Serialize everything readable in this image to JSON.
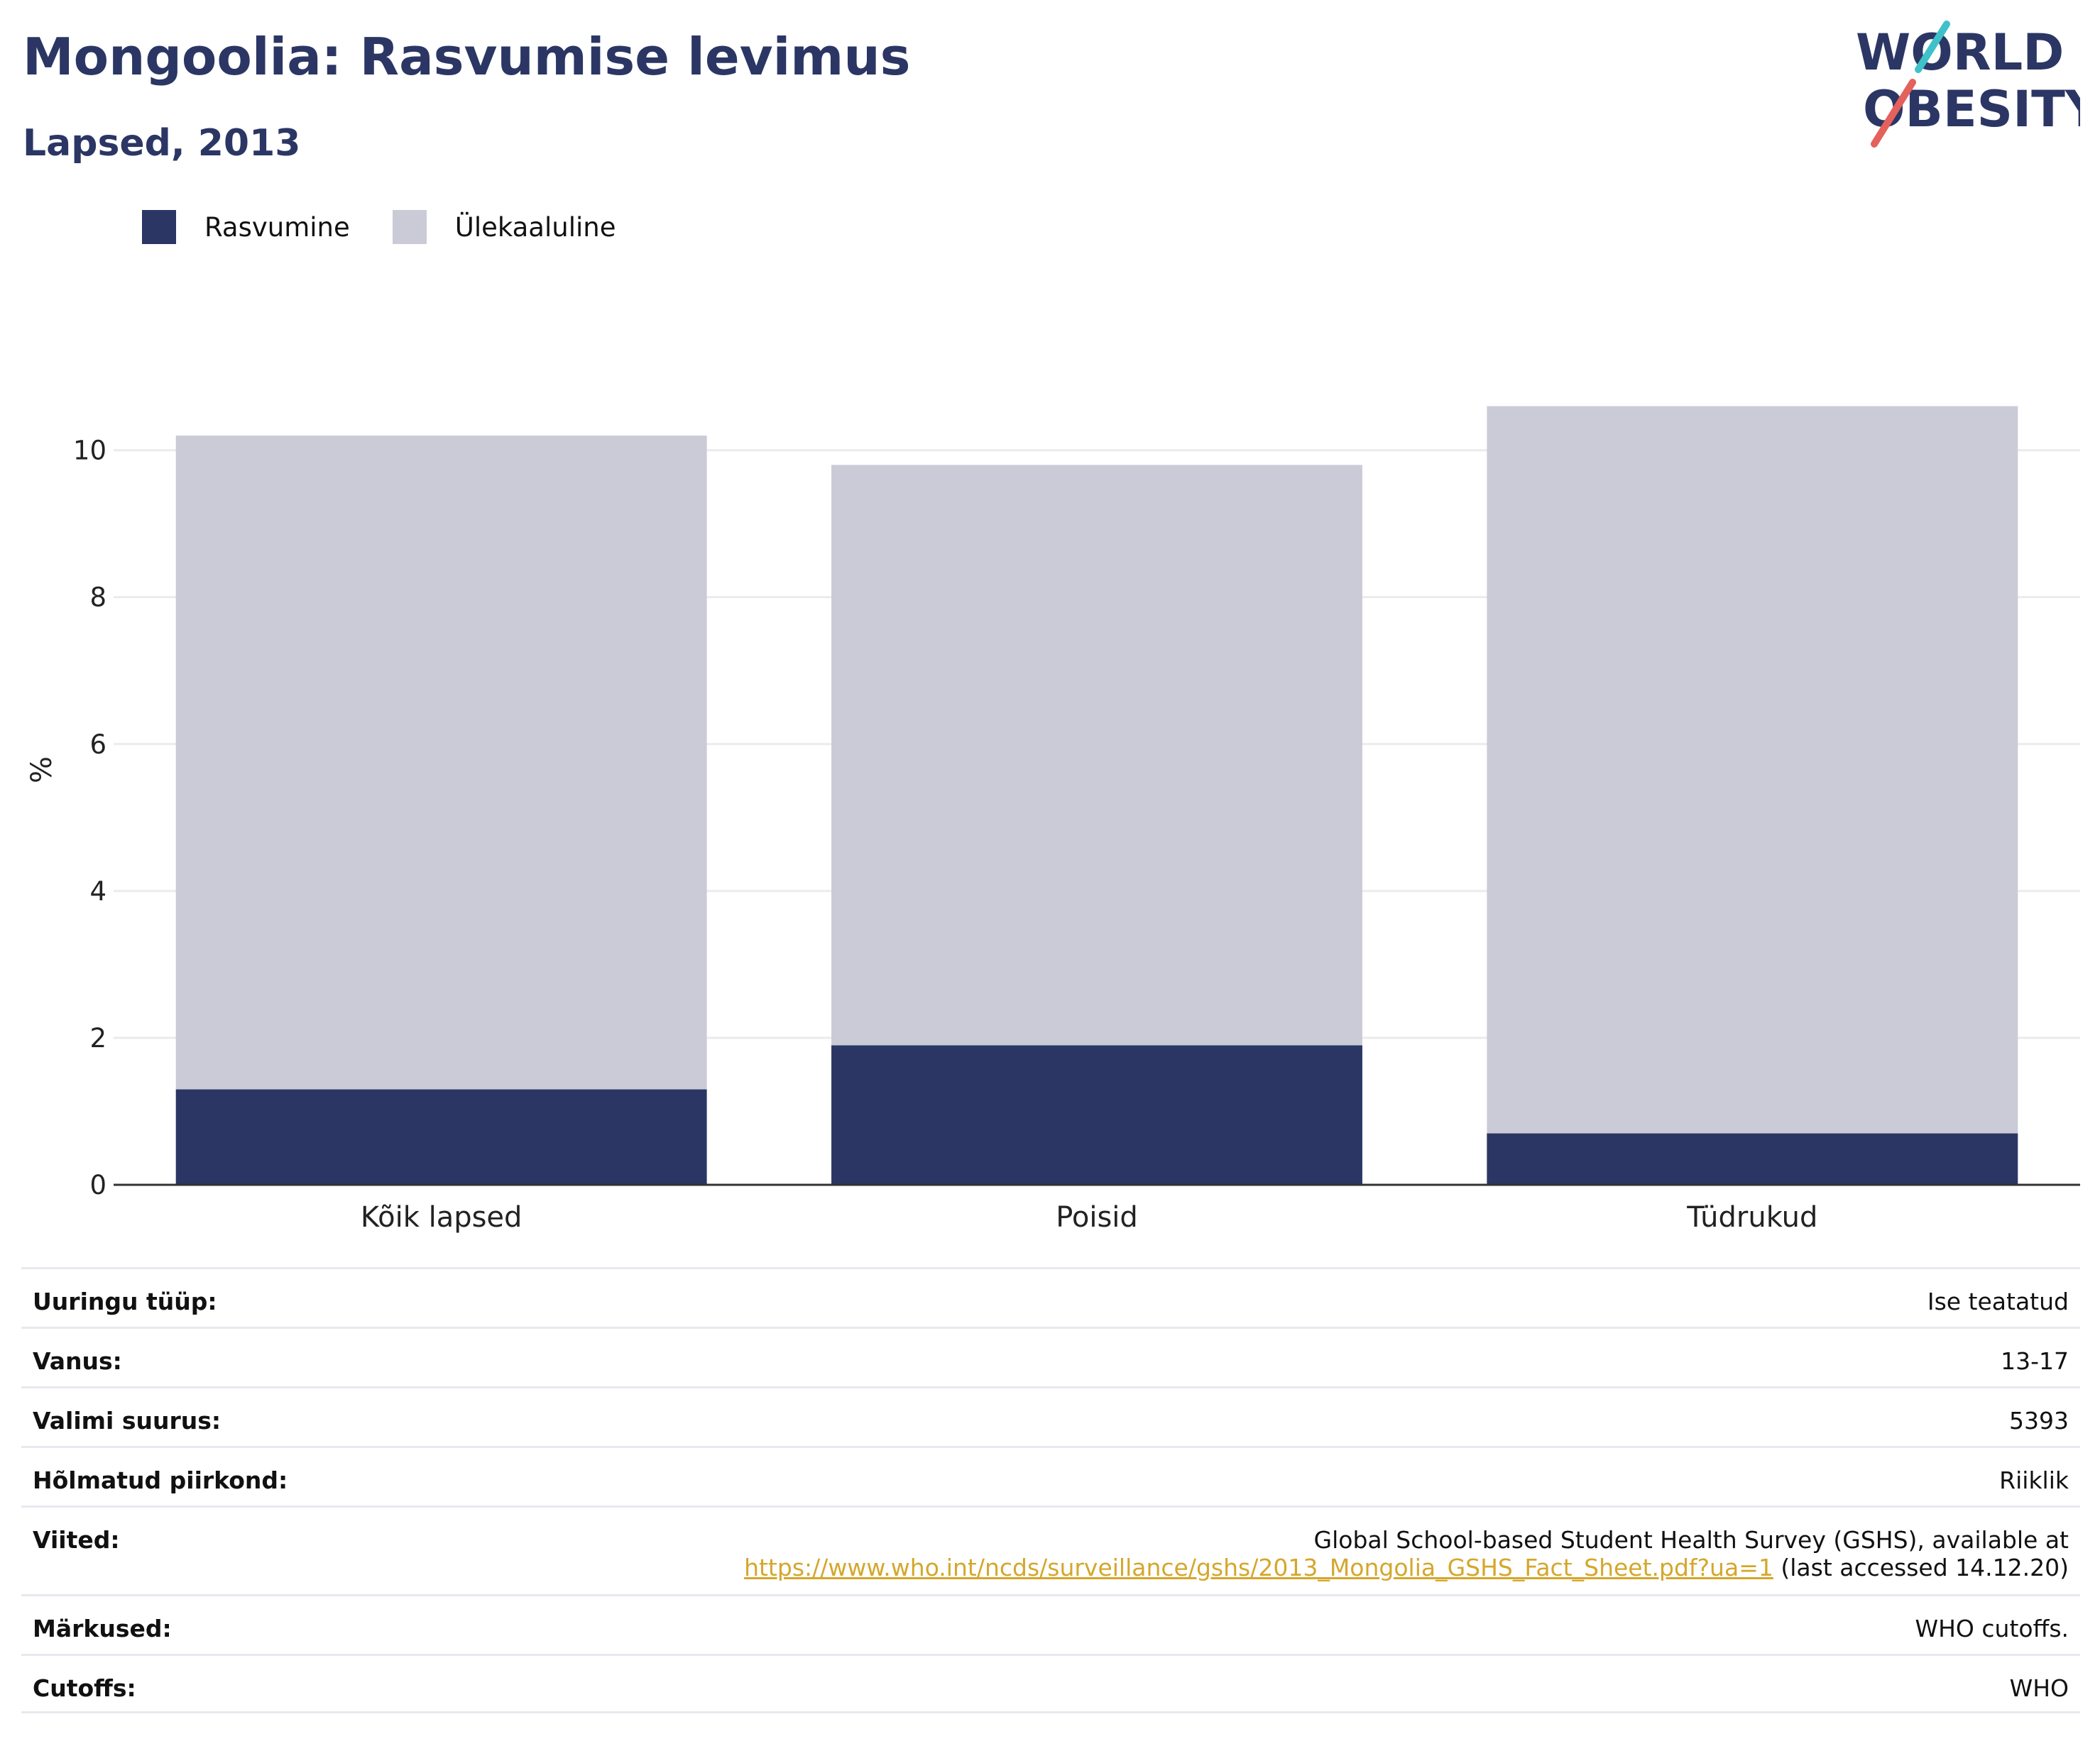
{
  "header": {
    "title": "Mongoolia: Rasvumise levimus",
    "subtitle": "Lapsed, 2013"
  },
  "logo": {
    "line1": "WORLD",
    "line2": "OBESITY",
    "colors": {
      "text": "#2b3664",
      "accent_red": "#e4615c",
      "accent_teal": "#3fc1c9"
    }
  },
  "legend": [
    {
      "label": "Rasvumine",
      "color": "#2b3664"
    },
    {
      "label": "Ülekaaluline",
      "color": "#cacbd7"
    }
  ],
  "chart_data": {
    "type": "bar",
    "stacked": true,
    "categories": [
      "Kõik lapsed",
      "Poisid",
      "Tüdrukud"
    ],
    "series": [
      {
        "name": "Rasvumine",
        "color": "#2b3664",
        "values": [
          1.3,
          1.9,
          0.7
        ]
      },
      {
        "name": "Ülekaaluline",
        "color": "#cacbd7",
        "values": [
          8.9,
          7.9,
          9.9
        ]
      }
    ],
    "ylabel": "%",
    "ylim": [
      0,
      11.3
    ],
    "yticks": [
      0,
      2,
      4,
      6,
      8,
      10
    ],
    "grid": true,
    "legend_position": "top-left"
  },
  "details": [
    {
      "key": "Uuringu tüüp:",
      "value": "Ise teatatud"
    },
    {
      "key": "Vanus:",
      "value": "13-17"
    },
    {
      "key": "Valimi suurus:",
      "value": "5393"
    },
    {
      "key": "Hõlmatud piirkond:",
      "value": "Riiklik"
    },
    {
      "key": "Viited:",
      "value_line1": "Global School-based Student Health Survey (GSHS), available at",
      "link": "https://www.who.int/ncds/surveillance/gshs/2013_Mongolia_GSHS_Fact_Sheet.pdf?ua=1",
      "suffix": " (last accessed 14.12.20)"
    },
    {
      "key": "Märkused:",
      "value": "WHO cutoffs."
    },
    {
      "key": "Cutoffs:",
      "value": "WHO"
    }
  ],
  "colors": {
    "link": "#d4a72c",
    "grid": "#ebebeb",
    "axis": "#333333"
  }
}
